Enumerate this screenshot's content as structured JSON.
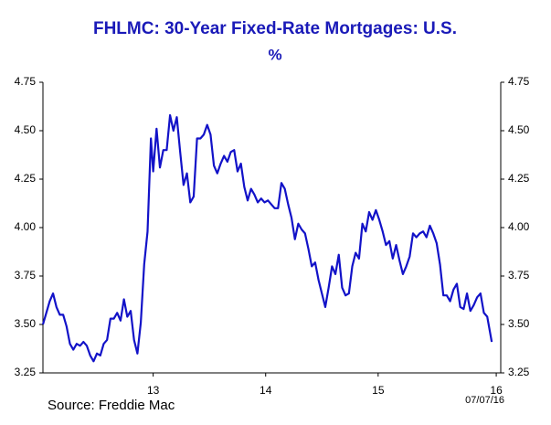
{
  "chart_data": {
    "type": "line",
    "title": "FHLMC: 30-Year Fixed-Rate Mortgages: U.S.",
    "subtitle": "%",
    "source": "Source:  Freddie Mac",
    "date_note": "07/07/16",
    "xlim": [
      12.52,
      16.59
    ],
    "xticks": [
      {
        "value": 13.5,
        "label": "13"
      },
      {
        "value": 14.5,
        "label": "14"
      },
      {
        "value": 15.5,
        "label": "15"
      },
      {
        "value": 16.55,
        "label": "16"
      }
    ],
    "ylim": [
      3.25,
      4.75
    ],
    "yticks": [
      3.25,
      {
        "value": 3.5,
        "label": "3.50"
      },
      3.75,
      {
        "value": 4.0,
        "label": "4.00"
      },
      4.25,
      {
        "value": 4.5,
        "label": "4.50"
      },
      4.75
    ],
    "y2lim": [
      3.25,
      4.75
    ],
    "y2ticks": [
      3.25,
      {
        "value": 3.5,
        "label": "3.50"
      },
      3.75,
      {
        "value": 4.0,
        "label": "4.00"
      },
      4.25,
      {
        "value": 4.5,
        "label": "4.50"
      },
      4.75
    ],
    "x": [
      12.52,
      12.55,
      12.58,
      12.61,
      12.64,
      12.67,
      12.7,
      12.73,
      12.76,
      12.79,
      12.82,
      12.85,
      12.88,
      12.91,
      12.94,
      12.97,
      13.0,
      13.03,
      13.06,
      13.09,
      13.12,
      13.15,
      13.18,
      13.21,
      13.24,
      13.27,
      13.3,
      13.33,
      13.36,
      13.39,
      13.42,
      13.45,
      13.48,
      13.5,
      13.53,
      13.56,
      13.59,
      13.62,
      13.65,
      13.68,
      13.71,
      13.74,
      13.77,
      13.8,
      13.83,
      13.86,
      13.89,
      13.92,
      13.95,
      13.98,
      14.01,
      14.04,
      14.07,
      14.1,
      14.13,
      14.16,
      14.19,
      14.22,
      14.25,
      14.28,
      14.31,
      14.34,
      14.37,
      14.4,
      14.43,
      14.46,
      14.49,
      14.52,
      14.55,
      14.58,
      14.61,
      14.64,
      14.67,
      14.7,
      14.73,
      14.76,
      14.79,
      14.82,
      14.85,
      14.88,
      14.91,
      14.94,
      14.97,
      15.0,
      15.03,
      15.06,
      15.09,
      15.12,
      15.15,
      15.18,
      15.21,
      15.24,
      15.27,
      15.3,
      15.33,
      15.36,
      15.39,
      15.42,
      15.45,
      15.48,
      15.51,
      15.54,
      15.57,
      15.6,
      15.63,
      15.66,
      15.69,
      15.72,
      15.75,
      15.78,
      15.81,
      15.84,
      15.87,
      15.9,
      15.93,
      15.96,
      15.99,
      16.02,
      16.05,
      16.08,
      16.11,
      16.14,
      16.17,
      16.2,
      16.23,
      16.26,
      16.29,
      16.32,
      16.35,
      16.38,
      16.41,
      16.44,
      16.47,
      16.51
    ],
    "series": [
      {
        "color": "#1212c8",
        "values": [
          3.5,
          3.56,
          3.62,
          3.66,
          3.59,
          3.55,
          3.55,
          3.49,
          3.4,
          3.37,
          3.4,
          3.39,
          3.41,
          3.39,
          3.34,
          3.31,
          3.35,
          3.34,
          3.4,
          3.42,
          3.53,
          3.53,
          3.56,
          3.52,
          3.63,
          3.54,
          3.57,
          3.42,
          3.35,
          3.51,
          3.81,
          3.98,
          4.46,
          4.29,
          4.51,
          4.31,
          4.4,
          4.4,
          4.58,
          4.5,
          4.57,
          4.39,
          4.22,
          4.28,
          4.13,
          4.16,
          4.46,
          4.46,
          4.48,
          4.53,
          4.48,
          4.32,
          4.28,
          4.33,
          4.37,
          4.34,
          4.39,
          4.4,
          4.29,
          4.33,
          4.21,
          4.14,
          4.2,
          4.17,
          4.13,
          4.15,
          4.13,
          4.14,
          4.12,
          4.1,
          4.1,
          4.23,
          4.2,
          4.12,
          4.05,
          3.94,
          4.02,
          3.99,
          3.97,
          3.89,
          3.8,
          3.82,
          3.73,
          3.66,
          3.59,
          3.69,
          3.8,
          3.76,
          3.86,
          3.69,
          3.65,
          3.66,
          3.8,
          3.87,
          3.84,
          4.02,
          3.98,
          4.08,
          4.04,
          4.09,
          4.04,
          3.98,
          3.91,
          3.93,
          3.84,
          3.91,
          3.83,
          3.76,
          3.8,
          3.85,
          3.97,
          3.95,
          3.97,
          3.98,
          3.95,
          4.01,
          3.97,
          3.92,
          3.81,
          3.65,
          3.65,
          3.62,
          3.68,
          3.71,
          3.59,
          3.58,
          3.66,
          3.57,
          3.6,
          3.64,
          3.66,
          3.56,
          3.54,
          3.41
        ]
      }
    ]
  }
}
